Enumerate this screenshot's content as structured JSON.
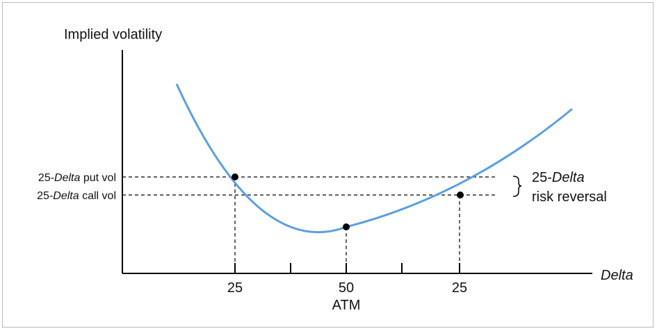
{
  "chart_data": {
    "type": "line",
    "y_axis_label": "Implied volatility",
    "x_axis_label": "Delta",
    "x_ticks": [
      {
        "label": "25",
        "sublabel": ""
      },
      {
        "label": "",
        "sublabel": ""
      },
      {
        "label": "50",
        "sublabel": "ATM"
      },
      {
        "label": "",
        "sublabel": ""
      },
      {
        "label": "25",
        "sublabel": ""
      }
    ],
    "series": [
      {
        "color": "#5b9fe0",
        "shape": "volatility smile (convex, minimum at ATM)"
      }
    ],
    "points": [
      {
        "name": "put",
        "label_pre": "25-",
        "label_ital": "Delta",
        "label_post": " put vol"
      },
      {
        "name": "atm"
      },
      {
        "name": "call",
        "label_pre": "25-",
        "label_ital": "Delta",
        "label_post": " call vol"
      }
    ],
    "annotation": {
      "line1_pre": "25-",
      "line1_ital": "Delta",
      "line2": "risk reversal"
    }
  }
}
